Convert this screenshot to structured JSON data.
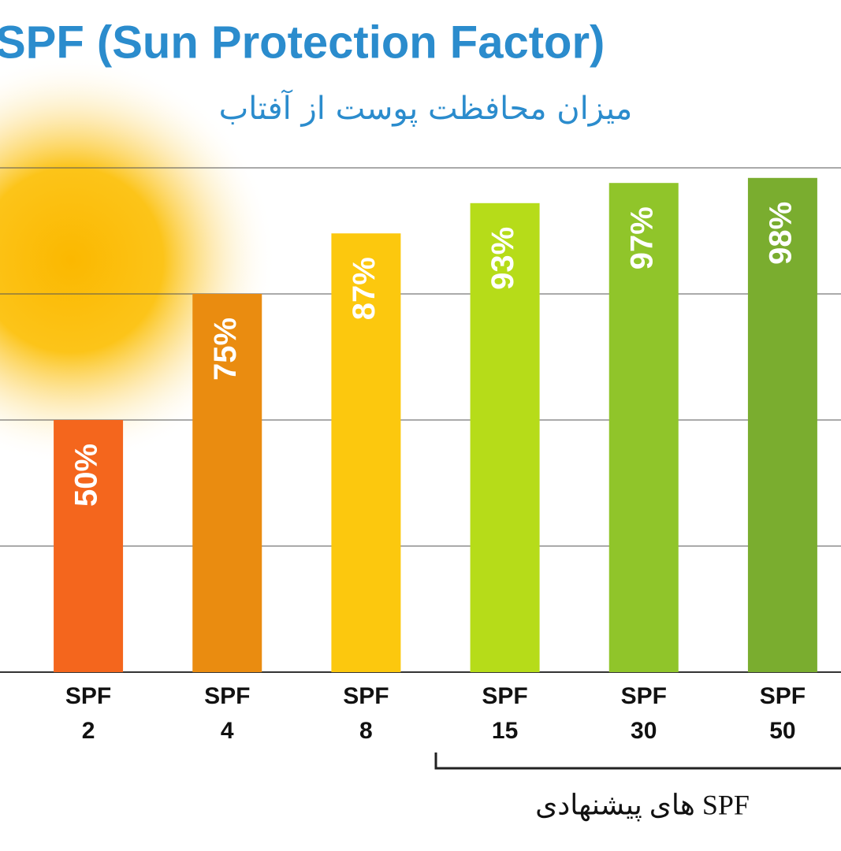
{
  "chart_data": {
    "type": "bar",
    "title": "SPF (Sun Protection Factor)",
    "subtitle": "میزان محافظت پوست از آفتاب",
    "categories": [
      "SPF 2",
      "SPF 4",
      "SPF 8",
      "SPF 15",
      "SPF 30",
      "SPF 50"
    ],
    "values": [
      50,
      75,
      87,
      93,
      97,
      98
    ],
    "value_labels": [
      "50%",
      "75%",
      "87%",
      "93%",
      "97%",
      "98%"
    ],
    "colors": [
      "#f4661d",
      "#ea8c10",
      "#fcc80e",
      "#b6dc19",
      "#90c52a",
      "#7aad2f"
    ],
    "ylim": [
      0,
      100
    ],
    "yticks": [
      0,
      25,
      50,
      75,
      100
    ],
    "grid": true,
    "annotation": "SPF های پیشنهادی"
  }
}
